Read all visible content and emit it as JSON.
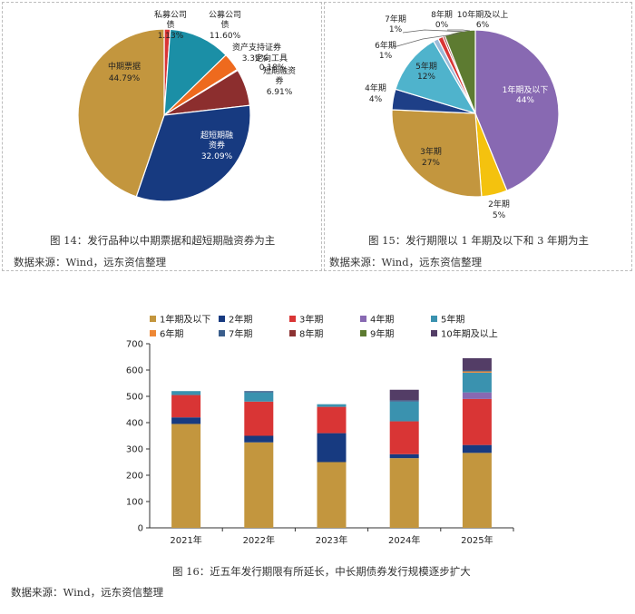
{
  "colors": {
    "gold": "#C3963E",
    "navy": "#173A80",
    "red": "#D93535",
    "purple": "#8869B2",
    "teal": "#3A92AF",
    "orange": "#EE8835",
    "slate": "#3A5E8C",
    "maroon": "#8C3232",
    "olive": "#5D7B31",
    "darkpurple": "#533D66",
    "lightblue": "#4FB3CC",
    "yellow": "#F4C20E",
    "darkblue": "#1E3F87"
  },
  "fig14": {
    "caption": "图 14：发行品种以中期票据和超短期融资券为主",
    "source": "数据来源：Wind，远东资信整理"
  },
  "fig15": {
    "caption": "图 15：发行期限以 1 年期及以下和 3 年期为主",
    "source": "数据来源：Wind，远东资信整理"
  },
  "fig16": {
    "caption": "图 16：近五年发行期限有所延长，中长期债券发行规模逐步扩大",
    "source": "数据来源：Wind，远东资信整理"
  },
  "chart_data": [
    {
      "type": "pie",
      "slices": [
        {
          "label": "私募公司债",
          "pct_label": "1.13%",
          "value": 1.13,
          "color": "#D93535"
        },
        {
          "label": "公募公司债",
          "pct_label": "11.60%",
          "value": 11.6,
          "color": "#1B8FA6"
        },
        {
          "label": "资产支持证券",
          "pct_label": "3.39%",
          "value": 3.39,
          "color": "#EE6A1E"
        },
        {
          "label": "定向工具",
          "pct_label": "0.18%",
          "value": 0.18,
          "color": "#6C9A3A"
        },
        {
          "label": "短期融资券",
          "pct_label": "6.91%",
          "value": 6.91,
          "color": "#8C2E2E"
        },
        {
          "label": "超短期融资券",
          "pct_label": "32.09%",
          "value": 32.09,
          "color": "#173A80"
        },
        {
          "label": "中期票据",
          "pct_label": "44.79%",
          "value": 44.79,
          "color": "#C3963E"
        }
      ]
    },
    {
      "type": "pie",
      "slices": [
        {
          "label": "1年期及以下",
          "pct_label": "44%",
          "value": 44,
          "color": "#8869B2"
        },
        {
          "label": "2年期",
          "pct_label": "5%",
          "value": 5,
          "color": "#F4C20E"
        },
        {
          "label": "3年期",
          "pct_label": "27%",
          "value": 27,
          "color": "#C3963E"
        },
        {
          "label": "4年期",
          "pct_label": "4%",
          "value": 4,
          "color": "#1E3F87"
        },
        {
          "label": "5年期",
          "pct_label": "12%",
          "value": 12,
          "color": "#4FB3CC"
        },
        {
          "label": "6年期",
          "pct_label": "1%",
          "value": 1,
          "color": "#9BBBD9"
        },
        {
          "label": "7年期",
          "pct_label": "1%",
          "value": 1,
          "color": "#D93535"
        },
        {
          "label": "8年期",
          "pct_label": "0%",
          "value": 0.4,
          "color": "#8C3232"
        },
        {
          "label": "10年期及以上",
          "pct_label": "6%",
          "value": 6,
          "color": "#5D7B31"
        }
      ]
    },
    {
      "type": "bar",
      "stacked": true,
      "categories": [
        "2021年",
        "2022年",
        "2023年",
        "2024年",
        "2025年"
      ],
      "ylim": [
        0,
        700
      ],
      "yticks": [
        0,
        100,
        200,
        300,
        400,
        500,
        600,
        700
      ],
      "grid": false,
      "legend_position": "top",
      "series": [
        {
          "name": "1年期及以下",
          "color": "#C3963E",
          "values": [
            395,
            325,
            250,
            265,
            285
          ]
        },
        {
          "name": "2年期",
          "color": "#173A80",
          "values": [
            25,
            25,
            110,
            15,
            30
          ]
        },
        {
          "name": "3年期",
          "color": "#D93535",
          "values": [
            85,
            130,
            100,
            125,
            175
          ]
        },
        {
          "name": "4年期",
          "color": "#8869B2",
          "values": [
            0,
            0,
            0,
            0,
            25
          ]
        },
        {
          "name": "5年期",
          "color": "#3A92AF",
          "values": [
            15,
            35,
            10,
            75,
            75
          ]
        },
        {
          "name": "6年期",
          "color": "#EE8835",
          "values": [
            0,
            0,
            0,
            0,
            5
          ]
        },
        {
          "name": "7年期",
          "color": "#3A5E8C",
          "values": [
            0,
            5,
            0,
            5,
            5
          ]
        },
        {
          "name": "8年期",
          "color": "#8C3232",
          "values": [
            0,
            0,
            0,
            0,
            0
          ]
        },
        {
          "name": "9年期",
          "color": "#5D7B31",
          "values": [
            0,
            0,
            0,
            0,
            0
          ]
        },
        {
          "name": "10年期及以上",
          "color": "#533D66",
          "values": [
            0,
            0,
            0,
            40,
            45
          ]
        }
      ]
    }
  ]
}
